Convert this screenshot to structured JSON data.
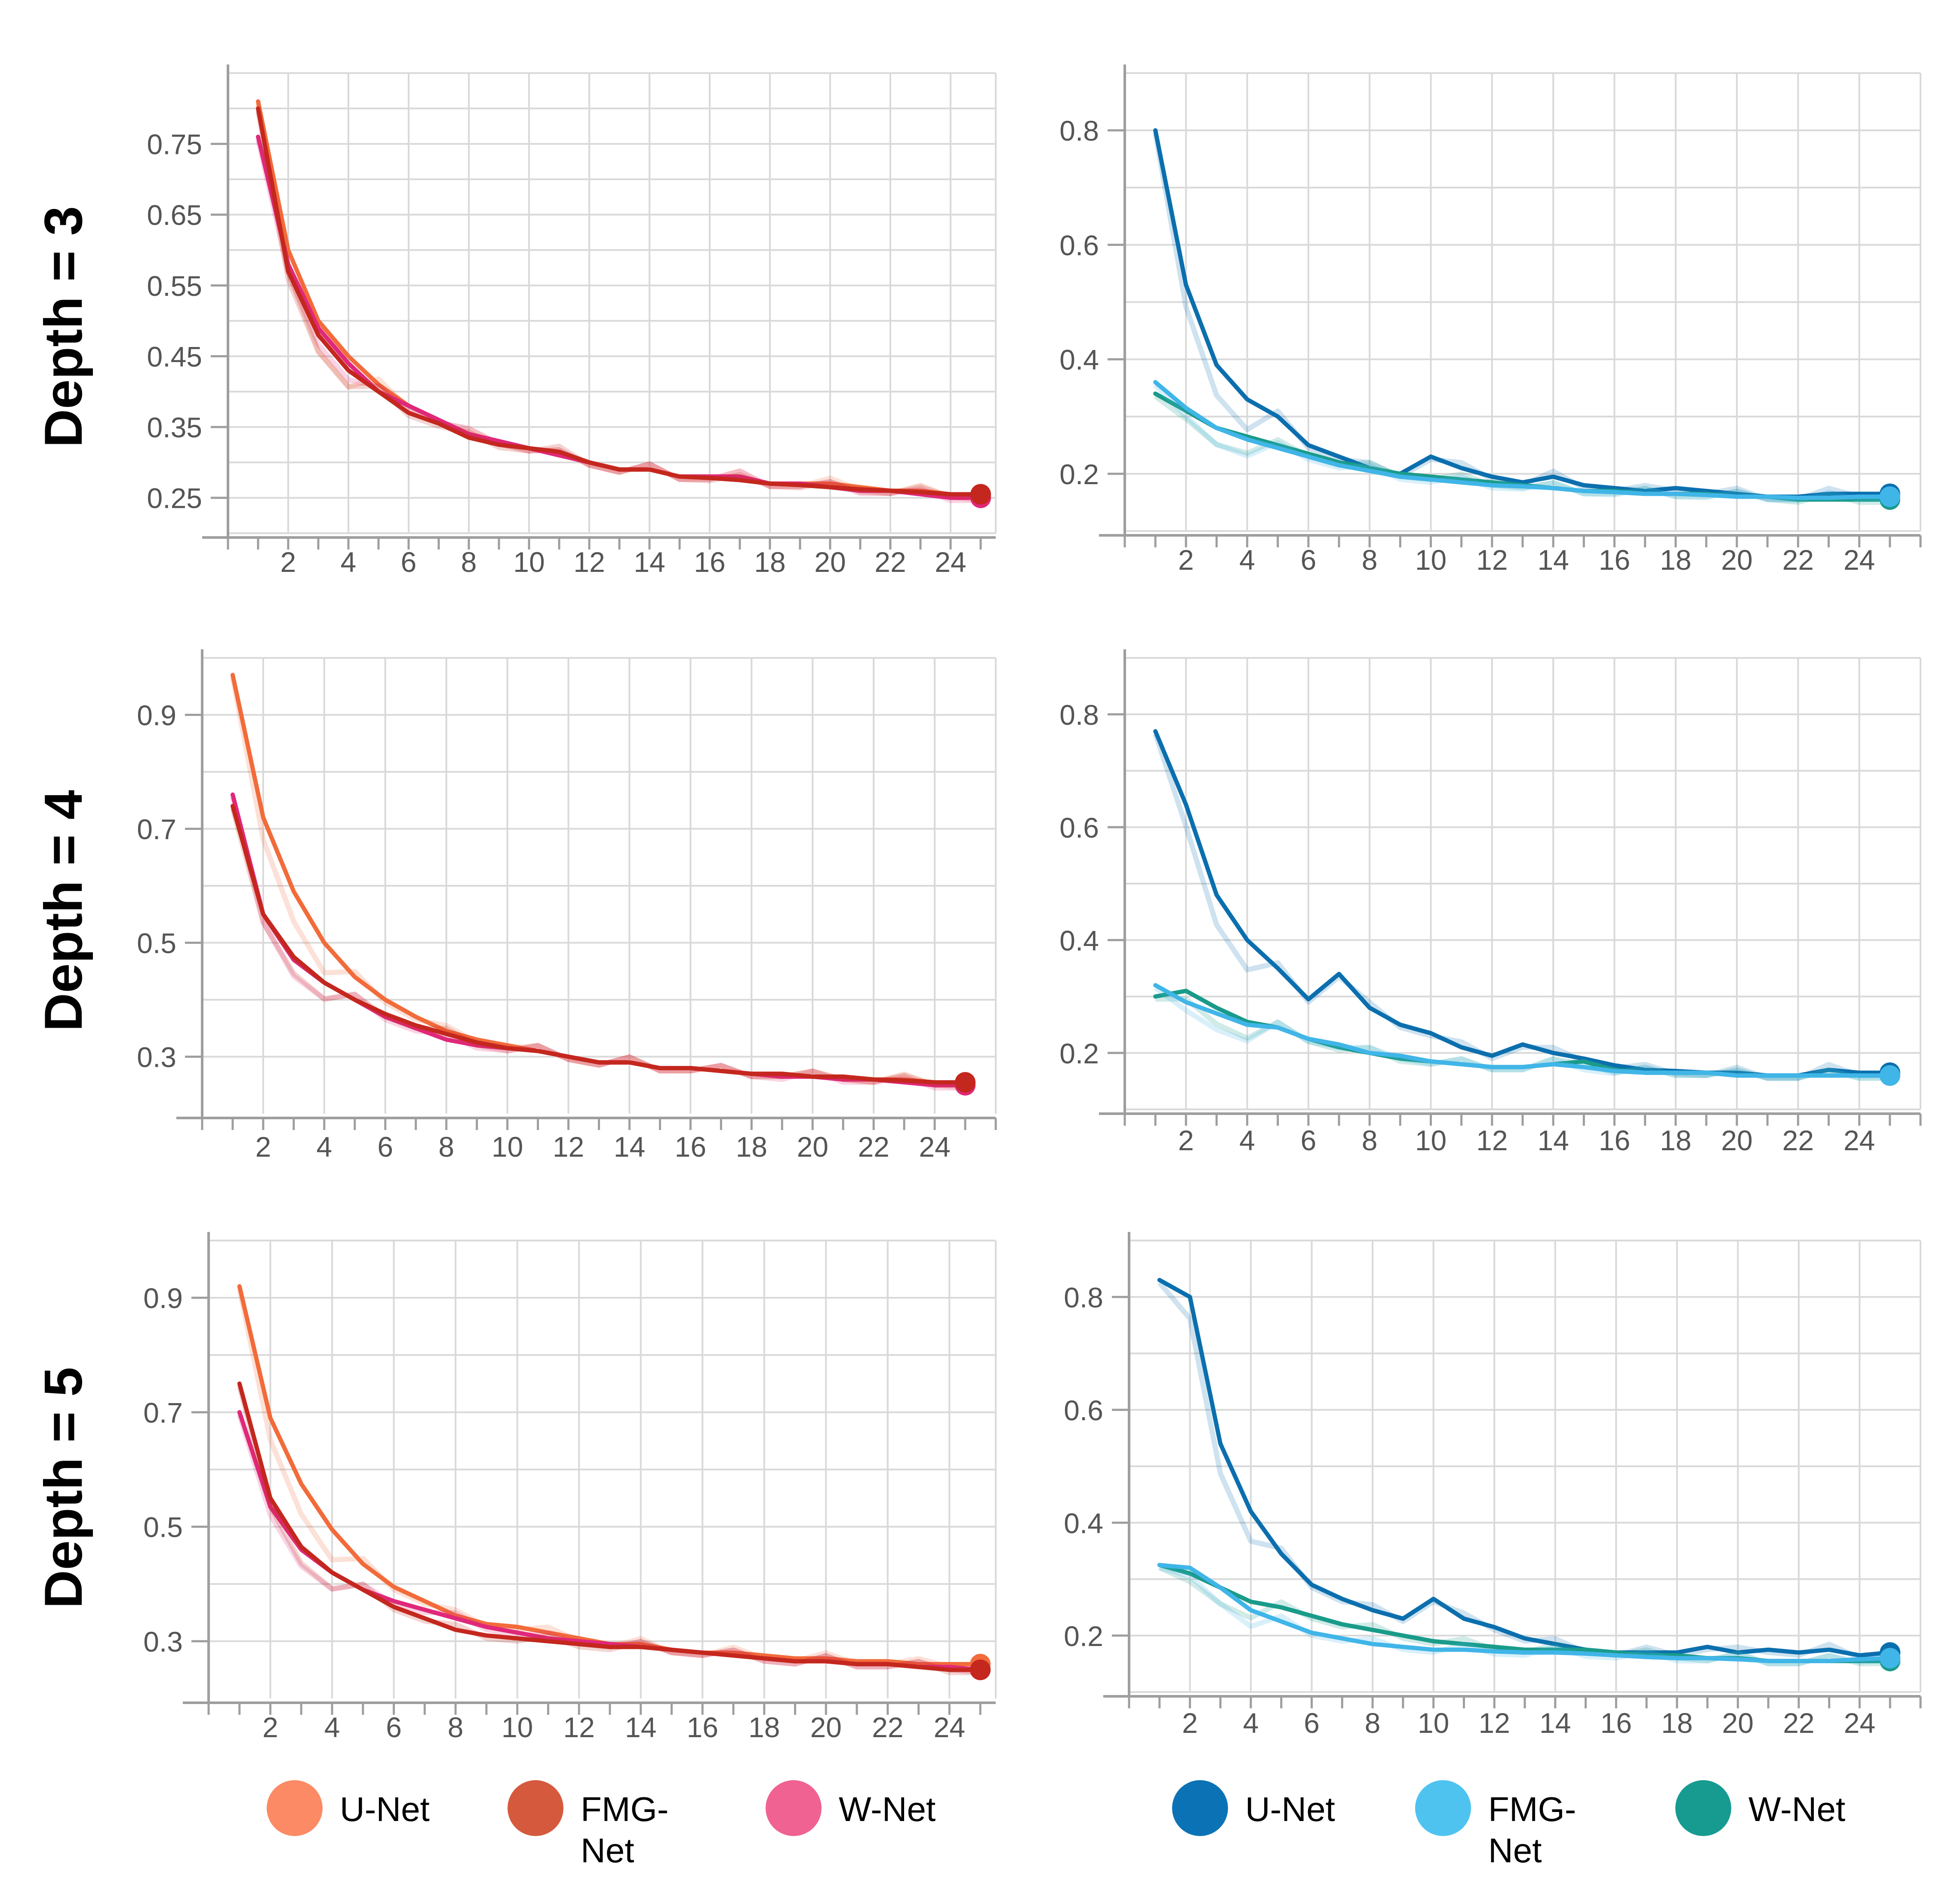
{
  "row_labels": [
    "Depth = 3",
    "Depth = 4",
    "Depth = 5"
  ],
  "legend_left": [
    {
      "name": "U-Net",
      "color": "#fc8a65"
    },
    {
      "name": "FMG-Net",
      "color": "#d55a3d"
    },
    {
      "name": "W-Net",
      "color": "#f06292"
    }
  ],
  "legend_right": [
    {
      "name": "U-Net",
      "color": "#0b73b5"
    },
    {
      "name": "FMG-Net",
      "color": "#4fc3f0"
    },
    {
      "name": "W-Net",
      "color": "#179b90"
    }
  ],
  "chart_data": [
    {
      "type": "line",
      "panel": "depth3-left",
      "grid": true,
      "xlim": [
        0,
        25.5
      ],
      "xticks": [
        2,
        4,
        6,
        8,
        10,
        12,
        14,
        16,
        18,
        20,
        22,
        24
      ],
      "ylim": [
        0.2,
        0.85
      ],
      "yticks": [
        0.25,
        0.35,
        0.45,
        0.55,
        0.65,
        0.75
      ],
      "ytick_labels": [
        "0.25",
        "0.35",
        "0.45",
        "0.55",
        "0.65",
        "0.75"
      ],
      "x": [
        1,
        2,
        3,
        4,
        5,
        6,
        7,
        8,
        9,
        10,
        11,
        12,
        13,
        14,
        15,
        16,
        17,
        18,
        19,
        20,
        21,
        22,
        23,
        24,
        25
      ],
      "series": [
        {
          "name": "U-Net",
          "color": "#f26b3a",
          "values": [
            0.81,
            0.6,
            0.5,
            0.45,
            0.41,
            0.38,
            0.36,
            0.34,
            0.33,
            0.32,
            0.31,
            0.3,
            0.29,
            0.29,
            0.28,
            0.28,
            0.28,
            0.27,
            0.27,
            0.27,
            0.265,
            0.26,
            0.26,
            0.255,
            0.25
          ]
        },
        {
          "name": "W-Net",
          "color": "#e0287a",
          "values": [
            0.76,
            0.58,
            0.49,
            0.44,
            0.4,
            0.38,
            0.36,
            0.34,
            0.33,
            0.32,
            0.31,
            0.3,
            0.29,
            0.29,
            0.28,
            0.28,
            0.28,
            0.27,
            0.27,
            0.265,
            0.26,
            0.26,
            0.255,
            0.25,
            0.25
          ]
        },
        {
          "name": "FMG-Net",
          "color": "#c4271e",
          "values": [
            0.8,
            0.57,
            0.48,
            0.43,
            0.4,
            0.37,
            0.355,
            0.335,
            0.325,
            0.32,
            0.315,
            0.3,
            0.29,
            0.29,
            0.28,
            0.278,
            0.275,
            0.27,
            0.268,
            0.265,
            0.262,
            0.26,
            0.258,
            0.255,
            0.255
          ]
        }
      ]
    },
    {
      "type": "line",
      "panel": "depth3-right",
      "grid": true,
      "xlim": [
        0,
        26
      ],
      "xticks": [
        2,
        4,
        6,
        8,
        10,
        12,
        14,
        16,
        18,
        20,
        22,
        24
      ],
      "ylim": [
        0.1,
        0.9
      ],
      "yticks": [
        0.2,
        0.4,
        0.6,
        0.8
      ],
      "ytick_labels": [
        "0.2",
        "0.4",
        "0.6",
        "0.8"
      ],
      "x": [
        1,
        2,
        3,
        4,
        5,
        6,
        7,
        8,
        9,
        10,
        11,
        12,
        13,
        14,
        15,
        16,
        17,
        18,
        19,
        20,
        21,
        22,
        23,
        24,
        25
      ],
      "series": [
        {
          "name": "U-Net",
          "color": "#0b6fae",
          "values": [
            0.8,
            0.53,
            0.39,
            0.33,
            0.3,
            0.25,
            0.23,
            0.21,
            0.2,
            0.23,
            0.21,
            0.195,
            0.185,
            0.195,
            0.18,
            0.175,
            0.17,
            0.175,
            0.17,
            0.165,
            0.16,
            0.16,
            0.165,
            0.165,
            0.165
          ]
        },
        {
          "name": "W-Net",
          "color": "#1a9b8a",
          "values": [
            0.34,
            0.31,
            0.28,
            0.265,
            0.25,
            0.235,
            0.22,
            0.21,
            0.2,
            0.195,
            0.19,
            0.185,
            0.18,
            0.175,
            0.17,
            0.17,
            0.165,
            0.165,
            0.165,
            0.16,
            0.16,
            0.155,
            0.155,
            0.155,
            0.155
          ]
        },
        {
          "name": "FMG-Net",
          "color": "#40b5e8",
          "values": [
            0.36,
            0.315,
            0.28,
            0.26,
            0.245,
            0.23,
            0.215,
            0.205,
            0.195,
            0.19,
            0.185,
            0.18,
            0.178,
            0.175,
            0.17,
            0.168,
            0.165,
            0.165,
            0.163,
            0.16,
            0.16,
            0.158,
            0.158,
            0.16,
            0.16
          ]
        }
      ]
    },
    {
      "type": "line",
      "panel": "depth4-left",
      "grid": true,
      "xlim": [
        0,
        26
      ],
      "xticks": [
        2,
        4,
        6,
        8,
        10,
        12,
        14,
        16,
        18,
        20,
        22,
        24
      ],
      "ylim": [
        0.2,
        1.0
      ],
      "yticks": [
        0.3,
        0.5,
        0.7,
        0.9
      ],
      "ytick_labels": [
        "0.3",
        "0.5",
        "0.7",
        "0.9"
      ],
      "x": [
        1,
        2,
        3,
        4,
        5,
        6,
        7,
        8,
        9,
        10,
        11,
        12,
        13,
        14,
        15,
        16,
        17,
        18,
        19,
        20,
        21,
        22,
        23,
        24,
        25
      ],
      "series": [
        {
          "name": "U-Net",
          "color": "#f26b3a",
          "values": [
            0.97,
            0.72,
            0.59,
            0.5,
            0.44,
            0.4,
            0.37,
            0.345,
            0.33,
            0.32,
            0.31,
            0.3,
            0.29,
            0.29,
            0.28,
            0.28,
            0.275,
            0.27,
            0.27,
            0.265,
            0.265,
            0.26,
            0.26,
            0.255,
            0.25
          ]
        },
        {
          "name": "W-Net",
          "color": "#e0287a",
          "values": [
            0.76,
            0.55,
            0.47,
            0.43,
            0.4,
            0.37,
            0.35,
            0.33,
            0.32,
            0.315,
            0.31,
            0.3,
            0.29,
            0.29,
            0.28,
            0.28,
            0.275,
            0.27,
            0.265,
            0.265,
            0.26,
            0.26,
            0.255,
            0.25,
            0.25
          ]
        },
        {
          "name": "FMG-Net",
          "color": "#c4271e",
          "values": [
            0.74,
            0.55,
            0.475,
            0.43,
            0.4,
            0.375,
            0.355,
            0.34,
            0.325,
            0.315,
            0.31,
            0.3,
            0.29,
            0.29,
            0.28,
            0.28,
            0.275,
            0.27,
            0.27,
            0.265,
            0.265,
            0.26,
            0.258,
            0.255,
            0.255
          ]
        }
      ]
    },
    {
      "type": "line",
      "panel": "depth4-right",
      "grid": true,
      "xlim": [
        0,
        26
      ],
      "xticks": [
        2,
        4,
        6,
        8,
        10,
        12,
        14,
        16,
        18,
        20,
        22,
        24
      ],
      "ylim": [
        0.1,
        0.9
      ],
      "yticks": [
        0.2,
        0.4,
        0.6,
        0.8
      ],
      "ytick_labels": [
        "0.2",
        "0.4",
        "0.6",
        "0.8"
      ],
      "x": [
        1,
        2,
        3,
        4,
        5,
        6,
        7,
        8,
        9,
        10,
        11,
        12,
        13,
        14,
        15,
        16,
        17,
        18,
        19,
        20,
        21,
        22,
        23,
        24,
        25
      ],
      "series": [
        {
          "name": "U-Net",
          "color": "#0b6fae",
          "values": [
            0.77,
            0.64,
            0.48,
            0.4,
            0.35,
            0.295,
            0.34,
            0.28,
            0.25,
            0.235,
            0.21,
            0.195,
            0.215,
            0.2,
            0.19,
            0.178,
            0.17,
            0.168,
            0.165,
            0.165,
            0.16,
            0.16,
            0.17,
            0.165,
            0.165
          ]
        },
        {
          "name": "W-Net",
          "color": "#1a9b8a",
          "values": [
            0.3,
            0.31,
            0.28,
            0.255,
            0.245,
            0.225,
            0.21,
            0.2,
            0.19,
            0.185,
            0.18,
            0.175,
            0.175,
            0.18,
            0.185,
            0.17,
            0.165,
            0.165,
            0.165,
            0.16,
            0.16,
            0.16,
            0.16,
            0.16,
            0.16
          ]
        },
        {
          "name": "FMG-Net",
          "color": "#40b5e8",
          "values": [
            0.32,
            0.29,
            0.27,
            0.25,
            0.245,
            0.225,
            0.215,
            0.2,
            0.195,
            0.185,
            0.18,
            0.175,
            0.175,
            0.18,
            0.175,
            0.168,
            0.165,
            0.165,
            0.165,
            0.16,
            0.16,
            0.16,
            0.16,
            0.16,
            0.16
          ]
        }
      ]
    },
    {
      "type": "line",
      "panel": "depth5-left",
      "grid": true,
      "xlim": [
        0,
        25.5
      ],
      "xticks": [
        2,
        4,
        6,
        8,
        10,
        12,
        14,
        16,
        18,
        20,
        22,
        24
      ],
      "ylim": [
        0.2,
        1.0
      ],
      "yticks": [
        0.3,
        0.5,
        0.7,
        0.9
      ],
      "ytick_labels": [
        "0.3",
        "0.5",
        "0.7",
        "0.9"
      ],
      "x": [
        1,
        2,
        3,
        4,
        5,
        6,
        7,
        8,
        9,
        10,
        11,
        12,
        13,
        14,
        15,
        16,
        17,
        18,
        19,
        20,
        21,
        22,
        23,
        24,
        25
      ],
      "series": [
        {
          "name": "U-Net",
          "color": "#f26b3a",
          "values": [
            0.92,
            0.69,
            0.575,
            0.495,
            0.435,
            0.395,
            0.37,
            0.345,
            0.33,
            0.325,
            0.315,
            0.305,
            0.295,
            0.295,
            0.285,
            0.28,
            0.28,
            0.275,
            0.27,
            0.27,
            0.265,
            0.265,
            0.26,
            0.26,
            0.26
          ]
        },
        {
          "name": "W-Net",
          "color": "#e0287a",
          "values": [
            0.7,
            0.535,
            0.46,
            0.42,
            0.39,
            0.37,
            0.355,
            0.34,
            0.325,
            0.315,
            0.305,
            0.3,
            0.295,
            0.29,
            0.285,
            0.28,
            0.275,
            0.27,
            0.265,
            0.265,
            0.26,
            0.26,
            0.255,
            0.255,
            0.25
          ]
        },
        {
          "name": "FMG-Net",
          "color": "#c4271e",
          "values": [
            0.75,
            0.55,
            0.465,
            0.42,
            0.39,
            0.36,
            0.34,
            0.32,
            0.31,
            0.305,
            0.3,
            0.295,
            0.29,
            0.29,
            0.285,
            0.28,
            0.275,
            0.27,
            0.265,
            0.265,
            0.26,
            0.26,
            0.255,
            0.25,
            0.25
          ]
        }
      ]
    },
    {
      "type": "line",
      "panel": "depth5-right",
      "grid": true,
      "xlim": [
        0,
        26
      ],
      "xticks": [
        2,
        4,
        6,
        8,
        10,
        12,
        14,
        16,
        18,
        20,
        22,
        24
      ],
      "ylim": [
        0.1,
        0.9
      ],
      "yticks": [
        0.2,
        0.4,
        0.6,
        0.8
      ],
      "ytick_labels": [
        "0.2",
        "0.4",
        "0.6",
        "0.8"
      ],
      "x": [
        1,
        2,
        3,
        4,
        5,
        6,
        7,
        8,
        9,
        10,
        11,
        12,
        13,
        14,
        15,
        16,
        17,
        18,
        19,
        20,
        21,
        22,
        23,
        24,
        25
      ],
      "series": [
        {
          "name": "U-Net",
          "color": "#0b6fae",
          "values": [
            0.83,
            0.8,
            0.54,
            0.42,
            0.345,
            0.29,
            0.265,
            0.245,
            0.23,
            0.265,
            0.23,
            0.215,
            0.195,
            0.185,
            0.175,
            0.17,
            0.17,
            0.17,
            0.18,
            0.17,
            0.175,
            0.17,
            0.175,
            0.165,
            0.17
          ]
        },
        {
          "name": "W-Net",
          "color": "#1a9b8a",
          "values": [
            0.325,
            0.31,
            0.285,
            0.26,
            0.25,
            0.235,
            0.22,
            0.21,
            0.2,
            0.19,
            0.185,
            0.18,
            0.175,
            0.175,
            0.175,
            0.17,
            0.165,
            0.165,
            0.16,
            0.16,
            0.155,
            0.155,
            0.155,
            0.155,
            0.155
          ]
        },
        {
          "name": "FMG-Net",
          "color": "#40b5e8",
          "values": [
            0.325,
            0.32,
            0.285,
            0.245,
            0.225,
            0.205,
            0.195,
            0.185,
            0.18,
            0.175,
            0.175,
            0.172,
            0.17,
            0.17,
            0.168,
            0.165,
            0.162,
            0.16,
            0.16,
            0.158,
            0.155,
            0.155,
            0.155,
            0.158,
            0.16
          ]
        }
      ]
    }
  ]
}
